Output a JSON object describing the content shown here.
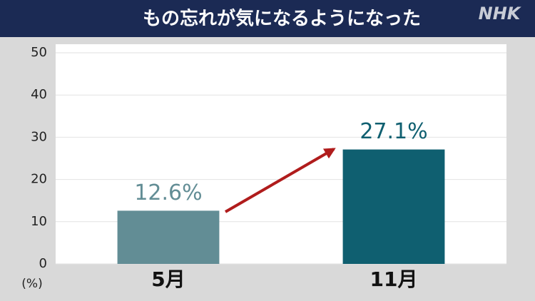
{
  "chart_data": {
    "type": "bar",
    "title": "もの忘れが気になるようになった",
    "logo": "NHK",
    "y_label": "(%)",
    "categories": [
      "5月",
      "11月"
    ],
    "values": [
      12.6,
      27.1
    ],
    "value_labels": [
      "12.6%",
      "27.1%"
    ],
    "colors": [
      "#628d95",
      "#0f5f70"
    ],
    "ylim": [
      0,
      50
    ],
    "yticks": [
      0,
      10,
      20,
      30,
      40,
      50
    ],
    "grid": true
  }
}
